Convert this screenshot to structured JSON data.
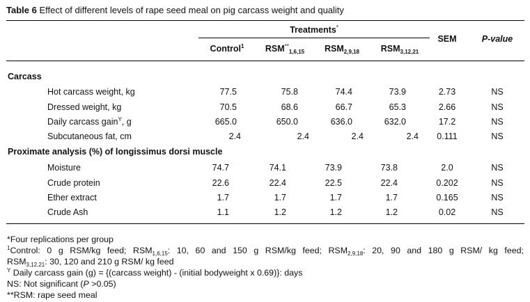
{
  "caption": {
    "label": "Table 6",
    "text": "Effect of different levels of rape seed meal on pig carcass weight and quality"
  },
  "header": {
    "treatments": "Treatments",
    "treatments_mark": "*",
    "sem": "SEM",
    "pvalue": "P-value",
    "columns": [
      {
        "base": "Control",
        "sup": "1",
        "sub": ""
      },
      {
        "base": "RSM",
        "sup": "**",
        "sub": "1,6,15"
      },
      {
        "base": "RSM",
        "sup": "",
        "sub": "2,9,18"
      },
      {
        "base": "RSM",
        "sup": "",
        "sub": "3,12,21"
      }
    ]
  },
  "sections": [
    {
      "title": "Carcass",
      "rows": [
        {
          "label": "Hot carcass weight, kg",
          "label_sup": "",
          "label_after": "",
          "values": [
            "77.5",
            "75.8",
            "74.4",
            "73.9"
          ],
          "sem": "2.73",
          "p": "NS"
        },
        {
          "label": "Dressed weight, kg",
          "label_sup": "",
          "label_after": "",
          "values": [
            "70.5",
            "68.6",
            "66.7",
            "65.3"
          ],
          "sem": "2.66",
          "p": "NS"
        },
        {
          "label": "Daily carcass gain",
          "label_sup": "Y",
          "label_after": ", g",
          "values": [
            "665.0",
            "650.0",
            "636.0",
            "632.0"
          ],
          "sem": "17.2",
          "p": "NS"
        },
        {
          "label": "Subcutaneous fat, cm",
          "label_sup": "",
          "label_after": "",
          "values": [
            "2.4",
            "2.4",
            "2.4",
            "2.4"
          ],
          "sem": "0.111",
          "p": "NS"
        }
      ]
    },
    {
      "title": "Proximate analysis (%) of longissimus dorsi muscle",
      "rows": [
        {
          "label": "Moisture",
          "label_sup": "",
          "label_after": "",
          "values": [
            "74.7",
            "74.1",
            "73.9",
            "73.8"
          ],
          "sem": "2.0",
          "p": "NS"
        },
        {
          "label": "Crude protein",
          "label_sup": "",
          "label_after": "",
          "values": [
            "22.6",
            "22.4",
            "22.5",
            "22.4"
          ],
          "sem": "0.202",
          "p": "NS"
        },
        {
          "label": "Ether extract",
          "label_sup": "",
          "label_after": "",
          "values": [
            "1.7",
            "1.7",
            "1.7",
            "1.7"
          ],
          "sem": "0.165",
          "p": "NS"
        },
        {
          "label": "Crude Ash",
          "label_sup": "",
          "label_after": "",
          "values": [
            "1.1",
            "1.2",
            "1.2",
            "1.2"
          ],
          "sem": "0.02",
          "p": "NS"
        }
      ]
    }
  ],
  "footnotes": {
    "replications": "*Four replications per group",
    "control_sup": "1",
    "control_a": "Control: 0 g RSM/kg feed; RSM",
    "control_sub1": "1,6,15",
    "control_b": ": 10, 60 and 150 g RSM/kg feed; RSM",
    "control_sub2": "2,9,18",
    "control_c": ": 20, 90 and 180 g RSM/ kg feed;",
    "control_d": "RSM",
    "control_sub3": "3,12,21",
    "control_e": ": 30, 120 and 210 g RSM/ kg feed",
    "gain_sup": "Y",
    "gain_text": " Daily carcass gain (g) = {(carcass weight) - (initial bodyweight x 0.69)}: days",
    "ns_a": "NS: Not significant (",
    "ns_p": "P",
    "ns_b": " >0.05)",
    "rsm": "**RSM: rape seed meal"
  }
}
